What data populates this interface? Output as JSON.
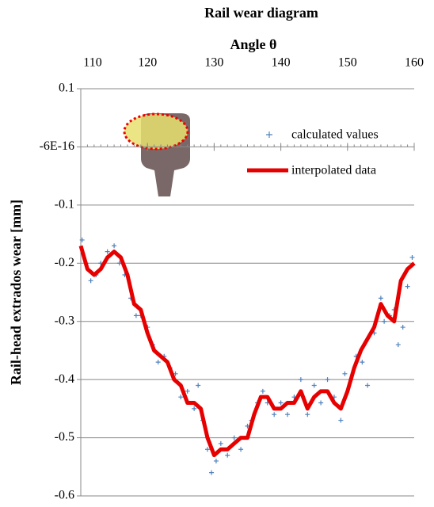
{
  "chart_data": {
    "type": "scatter-line",
    "title": "Rail wear diagram",
    "x_label": "Angle θ",
    "y_label": "Rail-head extrados wear  [mm]",
    "xlim": [
      110,
      160
    ],
    "xticks": [
      110,
      120,
      130,
      140,
      150,
      160
    ],
    "ylim": [
      -0.6,
      0.1
    ],
    "yticks": [
      0.1,
      {
        "value": -6e-16,
        "label": "-6E-16"
      },
      -0.1,
      -0.2,
      -0.3,
      -0.4,
      -0.5,
      -0.6
    ],
    "grid": true,
    "series": [
      {
        "name": "calculated values",
        "color": "#4f81bd",
        "x": [
          110.2,
          110.8,
          111.5,
          112.3,
          113,
          114,
          115,
          115.8,
          116.6,
          117.5,
          118.3,
          119,
          120,
          120.8,
          121.6,
          122.5,
          123.4,
          124.2,
          125,
          126,
          127,
          127.6,
          128.3,
          129,
          129.6,
          130.3,
          131,
          132,
          133,
          134,
          135,
          135.6,
          136.5,
          137.3,
          138,
          139,
          140,
          141,
          142,
          143,
          144,
          145,
          146,
          147,
          148,
          149,
          149.6,
          150.5,
          151.3,
          152.2,
          153,
          154,
          155,
          155.5,
          156.3,
          157,
          157.6,
          158.3,
          159,
          159.7
        ],
        "values": [
          -0.16,
          -0.2,
          -0.23,
          -0.22,
          -0.2,
          -0.18,
          -0.17,
          -0.2,
          -0.22,
          -0.26,
          -0.29,
          -0.29,
          -0.31,
          -0.34,
          -0.37,
          -0.36,
          -0.38,
          -0.39,
          -0.43,
          -0.42,
          -0.45,
          -0.41,
          -0.47,
          -0.52,
          -0.56,
          -0.54,
          -0.51,
          -0.53,
          -0.5,
          -0.52,
          -0.48,
          -0.47,
          -0.44,
          -0.42,
          -0.44,
          -0.46,
          -0.44,
          -0.46,
          -0.43,
          -0.4,
          -0.46,
          -0.41,
          -0.44,
          -0.4,
          -0.43,
          -0.47,
          -0.39,
          -0.4,
          -0.36,
          -0.37,
          -0.41,
          -0.32,
          -0.26,
          -0.3,
          -0.29,
          -0.28,
          -0.34,
          -0.31,
          -0.24,
          -0.19
        ]
      },
      {
        "name": "interpolated data",
        "color": "#e60000",
        "x": [
          110,
          111,
          112,
          113,
          114,
          115,
          116,
          117,
          118,
          119,
          120,
          121,
          122,
          123,
          124,
          125,
          126,
          127,
          128,
          129,
          130,
          131,
          132,
          133,
          134,
          135,
          136,
          137,
          138,
          139,
          140,
          141,
          142,
          143,
          144,
          145,
          146,
          147,
          148,
          149,
          150,
          151,
          152,
          153,
          154,
          155,
          156,
          157,
          158,
          159,
          160
        ],
        "values": [
          -0.17,
          -0.21,
          -0.22,
          -0.21,
          -0.19,
          -0.18,
          -0.19,
          -0.22,
          -0.27,
          -0.28,
          -0.32,
          -0.35,
          -0.36,
          -0.37,
          -0.4,
          -0.41,
          -0.44,
          -0.44,
          -0.45,
          -0.5,
          -0.53,
          -0.52,
          -0.52,
          -0.51,
          -0.5,
          -0.5,
          -0.46,
          -0.43,
          -0.43,
          -0.45,
          -0.45,
          -0.44,
          -0.44,
          -0.42,
          -0.45,
          -0.43,
          -0.42,
          -0.42,
          -0.44,
          -0.45,
          -0.42,
          -0.38,
          -0.35,
          -0.33,
          -0.31,
          -0.27,
          -0.29,
          -0.3,
          -0.23,
          -0.21,
          -0.2
        ]
      }
    ]
  }
}
